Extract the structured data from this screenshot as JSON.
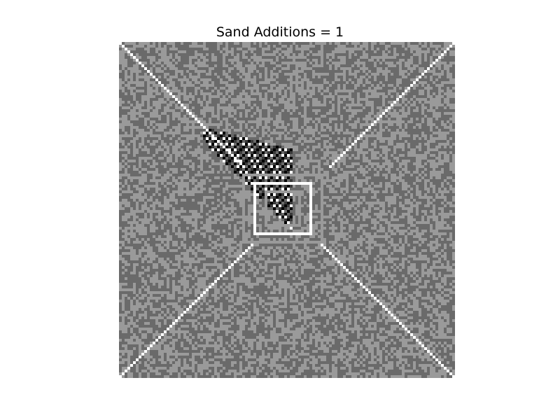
{
  "title": "Sand Additions = 1",
  "grid": {
    "rows": 120,
    "cols": 120,
    "background_states": [
      2,
      3
    ],
    "colormap": [
      "#000000",
      "#3a3a3a",
      "#6a6a6a",
      "#9a9a9a",
      "#ffffff"
    ],
    "diagonal_lines": "white",
    "center_feature": "striped checker region with nested square outlines"
  }
}
